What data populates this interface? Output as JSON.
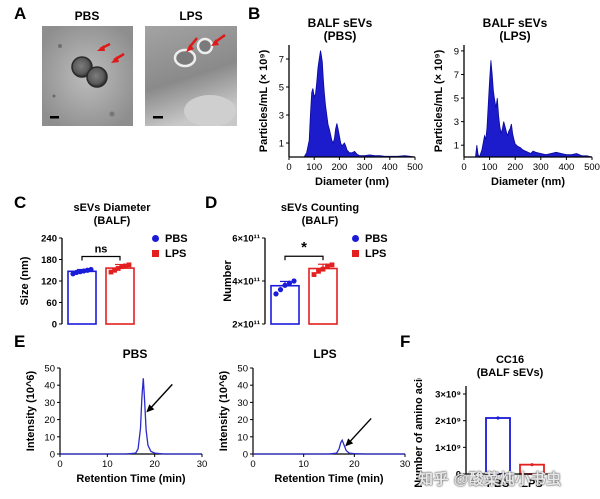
{
  "panels": {
    "A": {
      "letter": "A",
      "images": [
        {
          "label": "PBS"
        },
        {
          "label": "LPS"
        }
      ]
    },
    "B": {
      "letter": "B",
      "plots": [
        {
          "title_line1": "BALF sEVs",
          "title_line2": "(PBS)"
        },
        {
          "title_line1": "BALF sEVs",
          "title_line2": "(LPS)"
        }
      ]
    },
    "C": {
      "letter": "C",
      "title_line1": "sEVs Diameter",
      "title_line2": "(BALF)",
      "sig": "ns"
    },
    "D": {
      "letter": "D",
      "title_line1": "sEVs Counting",
      "title_line2": "(BALF)",
      "sig": "*"
    },
    "E": {
      "letter": "E",
      "plots": [
        {
          "title": "PBS"
        },
        {
          "title": "LPS"
        }
      ]
    },
    "F": {
      "letter": "F",
      "title_line1": "CC16",
      "title_line2": "(BALF sEVs)"
    }
  },
  "legend": {
    "items": [
      {
        "label": "PBS",
        "color": "#1a1adb"
      },
      {
        "label": "LPS",
        "color": "#e32020"
      }
    ]
  },
  "watermark": "知乎 @酸菜炖小书虫",
  "chart_data": [
    {
      "id": "B-PBS",
      "type": "area",
      "title": "BALF sEVs (PBS)",
      "xlabel": "Diameter (nm)",
      "ylabel": "Particles/mL (× 10⁹)",
      "xlim": [
        0,
        500
      ],
      "ylim": [
        0,
        8
      ],
      "xticks": [
        0,
        100,
        200,
        300,
        400,
        500
      ],
      "yticks": [
        1,
        3,
        5,
        7
      ],
      "x": [
        40,
        60,
        70,
        80,
        85,
        90,
        95,
        100,
        105,
        110,
        115,
        120,
        125,
        128,
        132,
        136,
        140,
        145,
        150,
        155,
        160,
        165,
        170,
        175,
        180,
        185,
        190,
        195,
        200,
        205,
        210,
        215,
        220,
        225,
        230,
        240,
        250,
        260,
        270,
        280,
        300,
        320,
        340,
        360,
        380,
        400,
        430,
        460,
        480,
        500
      ],
      "y": [
        0,
        0,
        0.3,
        1.2,
        3.0,
        4.6,
        4.9,
        4.3,
        4.5,
        5.3,
        6.4,
        7.0,
        7.6,
        7.3,
        6.8,
        5.6,
        4.6,
        3.7,
        3.0,
        2.3,
        2.0,
        1.6,
        1.2,
        1.0,
        1.3,
        2.0,
        2.4,
        2.0,
        1.5,
        1.0,
        0.8,
        0.9,
        1.0,
        0.8,
        0.5,
        0.3,
        0.3,
        0.4,
        0.2,
        0.1,
        0.1,
        0.15,
        0.1,
        0.1,
        0.05,
        0.05,
        0.05,
        0.1,
        0.05,
        0
      ]
    },
    {
      "id": "B-LPS",
      "type": "area",
      "title": "BALF sEVs (LPS)",
      "xlabel": "Diameter (nm)",
      "ylabel": "Particles/mL (× 10⁹)",
      "xlim": [
        0,
        500
      ],
      "ylim": [
        0,
        9.5
      ],
      "xticks": [
        0,
        100,
        200,
        300,
        400,
        500
      ],
      "yticks": [
        1,
        3,
        5,
        7,
        9
      ],
      "x": [
        30,
        45,
        50,
        55,
        60,
        70,
        75,
        80,
        85,
        90,
        95,
        100,
        105,
        110,
        115,
        120,
        125,
        130,
        135,
        140,
        145,
        150,
        155,
        160,
        165,
        170,
        175,
        180,
        185,
        190,
        195,
        200,
        205,
        210,
        220,
        230,
        240,
        250,
        260,
        270,
        280,
        300,
        320,
        340,
        360,
        380,
        400,
        420,
        440,
        460,
        480,
        500
      ],
      "y": [
        0,
        0,
        1.0,
        0.2,
        0,
        0.6,
        1.2,
        1.8,
        1.5,
        2.5,
        4.5,
        6.5,
        8.2,
        7.0,
        5.6,
        4.8,
        4.2,
        5.0,
        3.5,
        2.6,
        2.0,
        2.4,
        3.0,
        2.6,
        2.2,
        1.8,
        2.2,
        2.4,
        2.8,
        2.0,
        1.5,
        1.1,
        1.0,
        0.9,
        0.8,
        0.6,
        0.5,
        0.4,
        0.3,
        0.5,
        0.4,
        0.3,
        0.2,
        0.3,
        0.4,
        0.3,
        0.2,
        0.2,
        0.3,
        0.1,
        0.1,
        0
      ]
    },
    {
      "id": "C",
      "type": "bar",
      "title": "sEVs Diameter (BALF)",
      "ylabel": "Size (nm)",
      "ylim": [
        0,
        240
      ],
      "yticks": [
        0,
        60,
        120,
        180,
        240
      ],
      "categories": [
        "PBS",
        "LPS"
      ],
      "values": [
        147,
        156
      ],
      "errors": [
        5,
        10
      ],
      "points": [
        [
          140,
          144,
          146,
          148,
          150,
          152
        ],
        [
          145,
          150,
          155,
          160,
          162,
          165
        ]
      ],
      "significance": "ns"
    },
    {
      "id": "D",
      "type": "bar",
      "title": "sEVs Counting (BALF)",
      "ylabel": "Number",
      "ylim": [
        200000000000.0,
        600000000000.0
      ],
      "yticks": [
        200000000000.0,
        400000000000.0,
        600000000000.0
      ],
      "ytick_labels": [
        "2×10¹¹",
        "4×10¹¹",
        "6×10¹¹"
      ],
      "categories": [
        "PBS",
        "LPS"
      ],
      "values": [
        378000000000.0,
        458000000000.0
      ],
      "errors": [
        20000000000.0,
        20000000000.0
      ],
      "points": [
        [
          340000000000.0,
          360000000000.0,
          380000000000.0,
          390000000000.0,
          400000000000.0
        ],
        [
          430000000000.0,
          445000000000.0,
          455000000000.0,
          470000000000.0,
          475000000000.0
        ]
      ],
      "significance": "*"
    },
    {
      "id": "E-PBS",
      "type": "line",
      "title": "PBS",
      "xlabel": "Retention Time (min)",
      "ylabel": "Intensity (10^6)",
      "xlim": [
        0,
        30
      ],
      "ylim": [
        0,
        50
      ],
      "xticks": [
        0,
        10,
        20,
        30
      ],
      "yticks": [
        0,
        10,
        20,
        30,
        40,
        50
      ],
      "x": [
        0,
        14,
        16,
        16.5,
        17,
        17.3,
        17.6,
        17.9,
        18.2,
        18.6,
        19.2,
        20,
        22,
        30
      ],
      "y": [
        0,
        0,
        0.5,
        3,
        15,
        33,
        44,
        30,
        14,
        5,
        1.5,
        0.5,
        0,
        0
      ],
      "annotation": "arrow to peak"
    },
    {
      "id": "E-LPS",
      "type": "line",
      "title": "LPS",
      "xlabel": "Retention Time (min)",
      "ylabel": "Intensity (10^6)",
      "xlim": [
        0,
        30
      ],
      "ylim": [
        0,
        50
      ],
      "xticks": [
        0,
        10,
        20,
        30
      ],
      "yticks": [
        0,
        10,
        20,
        30,
        40,
        50
      ],
      "x": [
        0,
        15,
        16.5,
        17,
        17.3,
        17.6,
        18,
        18.4,
        19,
        20,
        22,
        30
      ],
      "y": [
        0,
        0,
        0.5,
        3,
        6.5,
        8,
        5,
        2,
        0.5,
        0.2,
        0,
        0
      ],
      "annotation": "arrow to peak"
    },
    {
      "id": "F",
      "type": "bar",
      "title": "CC16 (BALF sEVs)",
      "ylabel": "Number of amino acid",
      "ylim": [
        0,
        3300000000.0
      ],
      "yticks": [
        0,
        1000000000.0,
        2000000000.0,
        3000000000.0
      ],
      "ytick_labels": [
        "0",
        "1×10⁹",
        "2×10⁹",
        "3×10⁹"
      ],
      "categories": [
        "PBS",
        "LPS"
      ],
      "values": [
        2100000000.0,
        350000000.0
      ]
    }
  ]
}
